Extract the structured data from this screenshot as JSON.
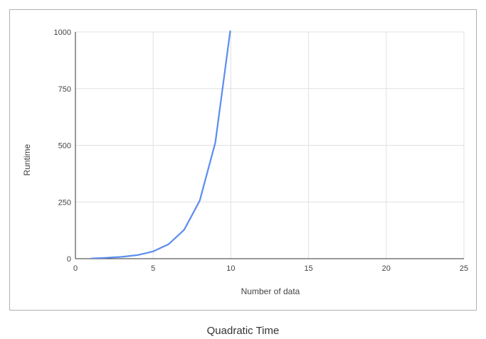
{
  "caption": "Quadratic Time",
  "chart_data": {
    "type": "line",
    "title": "",
    "xlabel": "Number of data",
    "ylabel": "Runtime",
    "xlim": [
      0,
      25
    ],
    "ylim": [
      0,
      1000
    ],
    "x_ticks": [
      0,
      5,
      10,
      15,
      20,
      25
    ],
    "y_ticks": [
      0,
      250,
      500,
      750,
      1000
    ],
    "grid": true,
    "legend": "none",
    "colors": {
      "line": "#5b8def",
      "grid": "#e0e0e0",
      "axis": "#333333",
      "text": "#444444"
    },
    "series": [
      {
        "x": [
          1,
          2,
          3,
          4,
          5,
          6,
          7,
          8,
          9,
          10
        ],
        "y": [
          1,
          4,
          8,
          16,
          32,
          64,
          128,
          256,
          512,
          1024
        ]
      }
    ]
  }
}
